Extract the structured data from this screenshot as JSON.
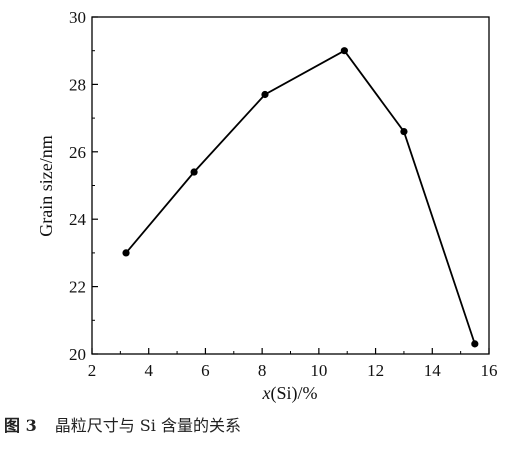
{
  "chart_data": {
    "type": "line",
    "x": [
      3.2,
      5.6,
      8.1,
      10.9,
      13.0,
      15.5
    ],
    "series": [
      {
        "values": [
          23.0,
          25.4,
          27.7,
          29.0,
          26.6,
          20.3
        ]
      }
    ],
    "xlabel_italic": "x",
    "xlabel_rest": "(Si)/%",
    "ylabel": "Grain size/nm",
    "xlim": [
      2,
      16
    ],
    "ylim": [
      20,
      30
    ],
    "xticks": [
      2,
      4,
      6,
      8,
      10,
      12,
      14,
      16
    ],
    "yticks": [
      20,
      22,
      24,
      26,
      28,
      30
    ],
    "grid": false,
    "marker": "filled-circle",
    "line_color": "#000000"
  },
  "caption": {
    "figure_number": "图 3",
    "text": "晶粒尺寸与 Si 含量的关系"
  }
}
